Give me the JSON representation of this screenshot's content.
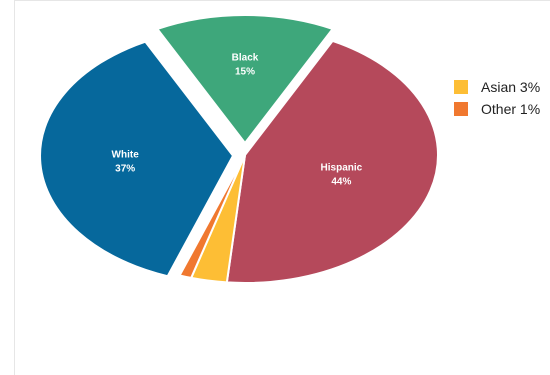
{
  "chart_data": {
    "type": "pie",
    "title": "",
    "slices": [
      {
        "label": "Hispanic",
        "value": 44,
        "display": "44%",
        "color": "#B5495B"
      },
      {
        "label": "Asian",
        "value": 3,
        "display": "3%",
        "color": "#FDBE35"
      },
      {
        "label": "Other",
        "value": 1,
        "display": "1%",
        "color": "#F0782F"
      },
      {
        "label": "White",
        "value": 37,
        "display": "37%",
        "color": "#06689C"
      },
      {
        "label": "Black",
        "value": 15,
        "display": "15%",
        "color": "#3EA77B"
      }
    ],
    "legend": {
      "placement": "right",
      "items": [
        {
          "text": "Asian 3%",
          "color": "#FDBE35"
        },
        {
          "text": "Other 1%",
          "color": "#F0782F"
        }
      ]
    },
    "exploded": [
      "White",
      "Black"
    ]
  }
}
